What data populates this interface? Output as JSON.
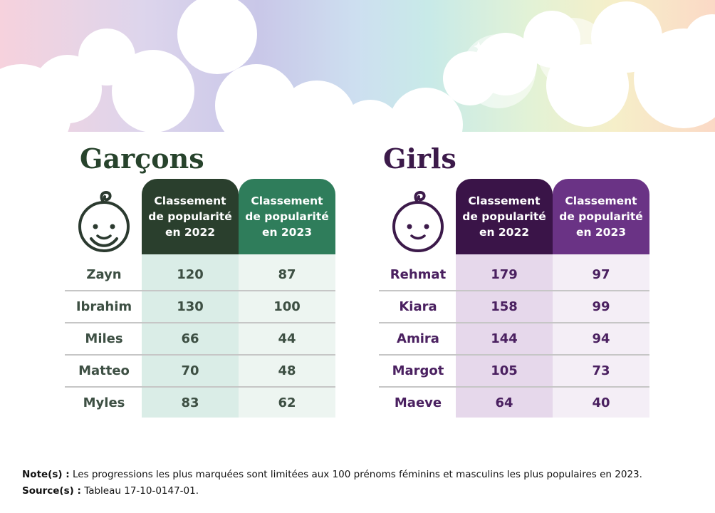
{
  "colors": {
    "boys_dark": "#2a3f2d",
    "boys_green": "#2f7d5b",
    "boys_col1": "#daede7",
    "boys_col2": "#edf5f1",
    "girls_dark": "#3a1448",
    "girls_purple": "#6a3385",
    "girls_col1": "#e6d8eb",
    "girls_col2": "#f4eef6"
  },
  "boys": {
    "title": "Garçons",
    "icon": "baby-face-icon",
    "headers": [
      {
        "line1": "Classement",
        "line2": "de popularité",
        "line3": "en 2022"
      },
      {
        "line1": "Classement",
        "line2": "de popularité",
        "line3": "en 2023"
      }
    ],
    "rows": [
      {
        "name": "Zayn",
        "rank_2022": "120",
        "rank_2023": "87"
      },
      {
        "name": "Ibrahim",
        "rank_2022": "130",
        "rank_2023": "100"
      },
      {
        "name": "Miles",
        "rank_2022": "66",
        "rank_2023": "44"
      },
      {
        "name": "Matteo",
        "rank_2022": "70",
        "rank_2023": "48"
      },
      {
        "name": "Myles",
        "rank_2022": "83",
        "rank_2023": "62"
      }
    ]
  },
  "girls": {
    "title": "Girls",
    "icon": "baby-face-icon",
    "headers": [
      {
        "line1": "Classement",
        "line2": "de popularité",
        "line3": "en 2022"
      },
      {
        "line1": "Classement",
        "line2": "de popularité",
        "line3": "en 2023"
      }
    ],
    "rows": [
      {
        "name": "Rehmat",
        "rank_2022": "179",
        "rank_2023": "97"
      },
      {
        "name": "Kiara",
        "rank_2022": "158",
        "rank_2023": "99"
      },
      {
        "name": "Amira",
        "rank_2022": "144",
        "rank_2023": "94"
      },
      {
        "name": "Margot",
        "rank_2022": "105",
        "rank_2023": "73"
      },
      {
        "name": "Maeve",
        "rank_2022": "64",
        "rank_2023": "40"
      }
    ]
  },
  "footer": {
    "note_label": "Note(s) :",
    "note_text": " Les progressions les plus marquées sont limitées aux 100 prénoms féminins et masculins les plus populaires en 2023.",
    "source_label": "Source(s) :",
    "source_text": " Tableau 17-10-0147-01."
  }
}
